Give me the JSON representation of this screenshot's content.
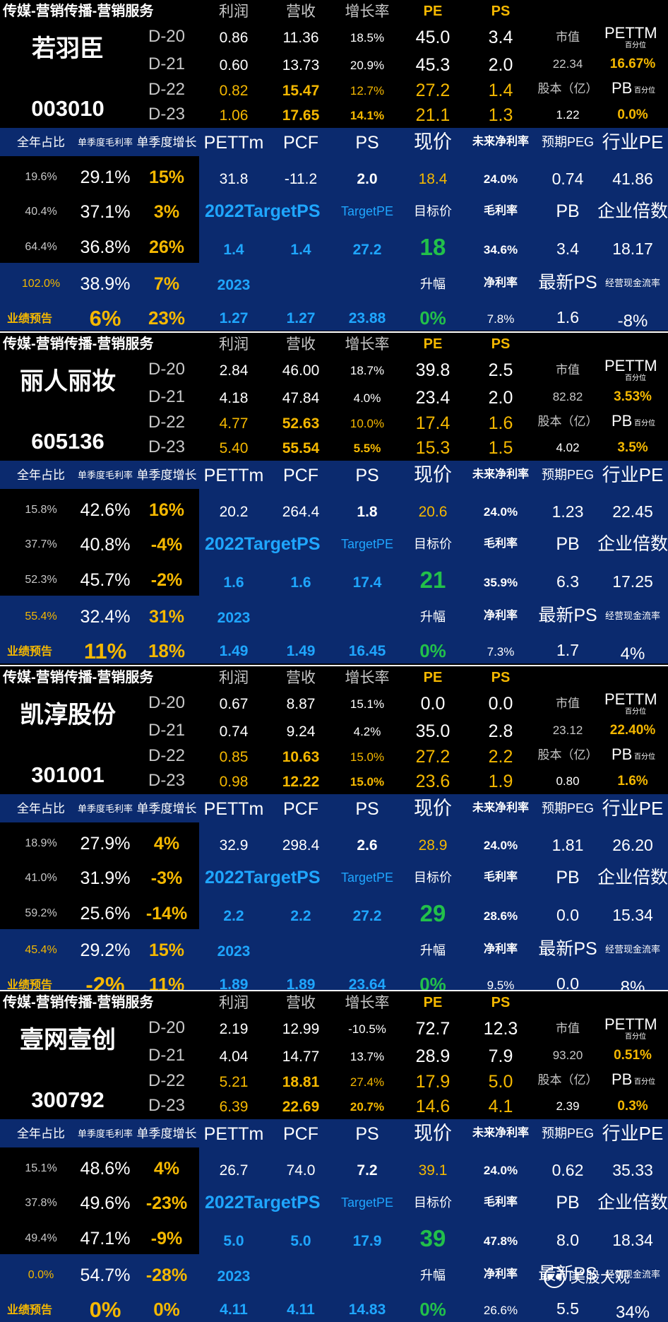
{
  "labels": {
    "sector": "传媒-营销传播-营销服务",
    "col_profit": "利润",
    "col_revenue": "营收",
    "col_growth": "增长率",
    "col_pe": "PE",
    "col_ps": "PS",
    "mktcap": "市值",
    "pettm_pct_a": "PETTM",
    "pettm_pct_b": "百分位",
    "shares": "股本（亿）",
    "pb_pct_a": "PB",
    "pb_pct_b": "百分位",
    "y20": "D-20",
    "y21": "D-21",
    "y22": "D-22",
    "y23": "D-23",
    "annual_share": "全年占比",
    "q_gross": "单季度毛利率",
    "q_growth": "单季度增长",
    "pettm": "PETTm",
    "pcf": "PCF",
    "ps": "PS",
    "price": "现价",
    "future_net": "未来净利率",
    "peg": "预期PEG",
    "industry_pe": "行业PE",
    "target_ps": "2022TargetPS",
    "target_pe": "TargetPE",
    "target_price": "目标价",
    "gross_margin": "毛利率",
    "pb": "PB",
    "ev_multiple": "企业倍数",
    "y2023": "2023",
    "upside": "升幅",
    "net_margin": "净利率",
    "latest_ps": "最新PS",
    "op_cashflow": "经营现金流率",
    "forecast": "业绩预告"
  },
  "stocks": [
    {
      "name": "若羽臣",
      "code": "003010",
      "profit": [
        "0.86",
        "0.60",
        "0.82",
        "1.06"
      ],
      "revenue": [
        "11.36",
        "13.73",
        "15.47",
        "17.65"
      ],
      "growth": [
        "18.5%",
        "20.9%",
        "12.7%",
        "14.1%"
      ],
      "pe": [
        "45.0",
        "45.3",
        "27.2",
        "21.1"
      ],
      "ps": [
        "3.4",
        "2.0",
        "1.4",
        "1.3"
      ],
      "mktcap": "22.34",
      "pettm_pct": "16.67%",
      "shares": "1.22",
      "pb_pct": "0.0%",
      "share_pct": [
        "19.6%",
        "40.4%",
        "64.4%",
        "102.0%"
      ],
      "q_gross": [
        "29.1%",
        "37.1%",
        "36.8%",
        "38.9%"
      ],
      "q_growth": [
        "15%",
        "3%",
        "26%",
        "7%"
      ],
      "forecast_a": "6%",
      "forecast_b": "23%",
      "pettm": "31.8",
      "pcf": "-11.2",
      "ps_now": "2.0",
      "price": "18.4",
      "future_net": "24.0%",
      "peg": "0.74",
      "industry_pe": "41.86",
      "gross_margin": "34.6%",
      "pb": "3.4",
      "ev": "18.17",
      "tps_a": "1.4",
      "tps_b": "1.4",
      "tpe": "27.2",
      "target_price": "18",
      "tps23_a": "1.27",
      "tps23_b": "1.27",
      "tpe23": "23.88",
      "upside": "0%",
      "net_margin": "7.8%",
      "latest_ps": "1.6",
      "op_cf": "-8%"
    },
    {
      "name": "丽人丽妆",
      "code": "605136",
      "profit": [
        "2.84",
        "4.18",
        "4.77",
        "5.40"
      ],
      "revenue": [
        "46.00",
        "47.84",
        "52.63",
        "55.54"
      ],
      "growth": [
        "18.7%",
        "4.0%",
        "10.0%",
        "5.5%"
      ],
      "pe": [
        "39.8",
        "23.4",
        "17.4",
        "15.3"
      ],
      "ps": [
        "2.5",
        "2.0",
        "1.6",
        "1.5"
      ],
      "mktcap": "82.82",
      "pettm_pct": "3.53%",
      "shares": "4.02",
      "pb_pct": "3.5%",
      "share_pct": [
        "15.8%",
        "37.7%",
        "52.3%",
        "55.4%"
      ],
      "q_gross": [
        "42.6%",
        "40.8%",
        "45.7%",
        "32.4%"
      ],
      "q_growth": [
        "16%",
        "-4%",
        "-2%",
        "31%"
      ],
      "forecast_a": "11%",
      "forecast_b": "18%",
      "pettm": "20.2",
      "pcf": "264.4",
      "ps_now": "1.8",
      "price": "20.6",
      "future_net": "24.0%",
      "peg": "1.23",
      "industry_pe": "22.45",
      "gross_margin": "35.9%",
      "pb": "6.3",
      "ev": "17.25",
      "tps_a": "1.6",
      "tps_b": "1.6",
      "tpe": "17.4",
      "target_price": "21",
      "tps23_a": "1.49",
      "tps23_b": "1.49",
      "tpe23": "16.45",
      "upside": "0%",
      "net_margin": "7.3%",
      "latest_ps": "1.7",
      "op_cf": "4%"
    },
    {
      "name": "凯淳股份",
      "code": "301001",
      "profit": [
        "0.67",
        "0.74",
        "0.85",
        "0.98"
      ],
      "revenue": [
        "8.87",
        "9.24",
        "10.63",
        "12.22"
      ],
      "growth": [
        "15.1%",
        "4.2%",
        "15.0%",
        "15.0%"
      ],
      "pe": [
        "0.0",
        "35.0",
        "27.2",
        "23.6"
      ],
      "ps": [
        "0.0",
        "2.8",
        "2.2",
        "1.9"
      ],
      "mktcap": "23.12",
      "pettm_pct": "22.40%",
      "shares": "0.80",
      "pb_pct": "1.6%",
      "share_pct": [
        "18.9%",
        "41.0%",
        "59.2%",
        "45.4%"
      ],
      "q_gross": [
        "27.9%",
        "31.9%",
        "25.6%",
        "29.2%"
      ],
      "q_growth": [
        "4%",
        "-3%",
        "-14%",
        "15%"
      ],
      "forecast_a": "-2%",
      "forecast_b": "11%",
      "pettm": "32.9",
      "pcf": "298.4",
      "ps_now": "2.6",
      "price": "28.9",
      "future_net": "24.0%",
      "peg": "1.81",
      "industry_pe": "26.20",
      "gross_margin": "28.6%",
      "pb": "0.0",
      "ev": "15.34",
      "tps_a": "2.2",
      "tps_b": "2.2",
      "tpe": "27.2",
      "target_price": "29",
      "tps23_a": "1.89",
      "tps23_b": "1.89",
      "tpe23": "23.64",
      "upside": "0%",
      "net_margin": "9.5%",
      "latest_ps": "0.0",
      "op_cf": "8%"
    },
    {
      "name": "壹网壹创",
      "code": "300792",
      "profit": [
        "2.19",
        "4.04",
        "5.21",
        "6.39"
      ],
      "revenue": [
        "12.99",
        "14.77",
        "18.81",
        "22.69"
      ],
      "growth": [
        "-10.5%",
        "13.7%",
        "27.4%",
        "20.7%"
      ],
      "pe": [
        "72.7",
        "28.9",
        "17.9",
        "14.6"
      ],
      "ps": [
        "12.3",
        "7.9",
        "5.0",
        "4.1"
      ],
      "mktcap": "93.20",
      "pettm_pct": "0.51%",
      "shares": "2.39",
      "pb_pct": "0.3%",
      "share_pct": [
        "15.1%",
        "37.8%",
        "49.4%",
        "0.0%"
      ],
      "q_gross": [
        "48.6%",
        "49.6%",
        "47.1%",
        "54.7%"
      ],
      "q_growth": [
        "4%",
        "-23%",
        "-9%",
        "-28%"
      ],
      "forecast_a": "0%",
      "forecast_b": "0%",
      "pettm": "26.7",
      "pcf": "74.0",
      "ps_now": "7.2",
      "price": "39.1",
      "future_net": "24.0%",
      "peg": "0.62",
      "industry_pe": "35.33",
      "gross_margin": "47.8%",
      "pb": "8.0",
      "ev": "18.34",
      "tps_a": "5.0",
      "tps_b": "5.0",
      "tpe": "17.9",
      "target_price": "39",
      "tps23_a": "4.11",
      "tps23_b": "4.11",
      "tpe23": "14.83",
      "upside": "0%",
      "net_margin": "26.6%",
      "latest_ps": "5.5",
      "op_cf": "34%"
    }
  ],
  "watermark": "美股大观",
  "colors": {
    "background": "#000000",
    "panel_blue": "#0b2a6e",
    "yellow": "#f5b800",
    "blue": "#1fa6ff",
    "green": "#22c04a"
  }
}
